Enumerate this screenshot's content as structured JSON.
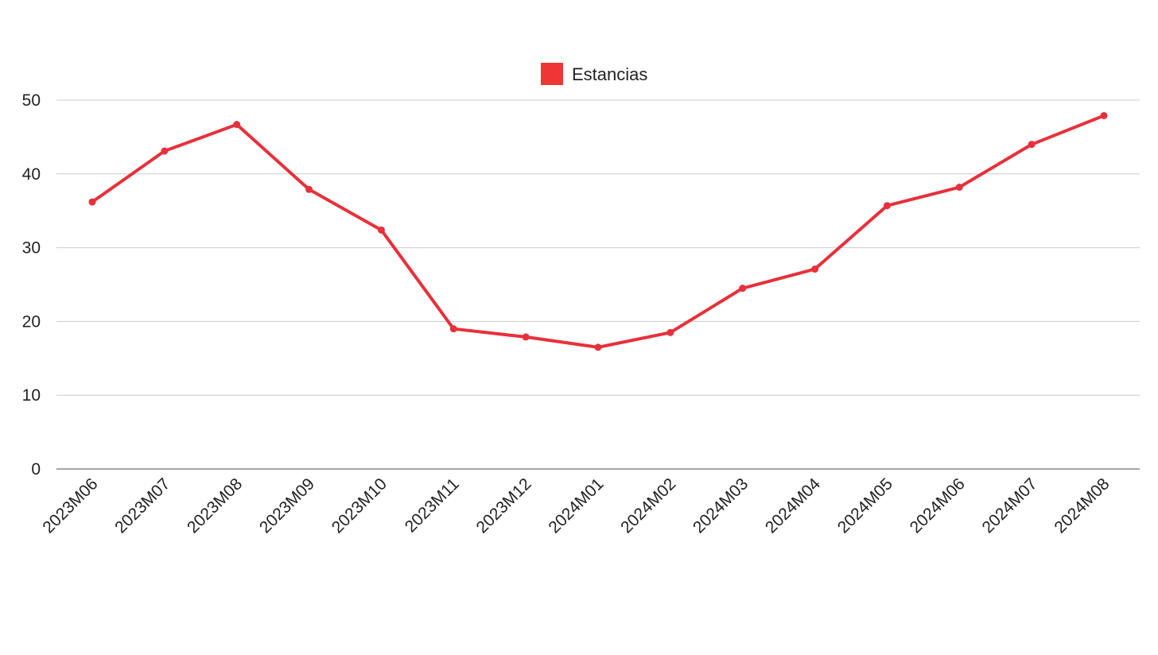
{
  "chart_data": {
    "type": "line",
    "title": "",
    "xlabel": "",
    "ylabel": "",
    "categories": [
      "2023M06",
      "2023M07",
      "2023M08",
      "2023M09",
      "2023M10",
      "2023M11",
      "2023M12",
      "2024M01",
      "2024M02",
      "2024M03",
      "2024M04",
      "2024M05",
      "2024M06",
      "2024M07",
      "2024M08"
    ],
    "series": [
      {
        "name": "Estancias",
        "color": "#e8303a",
        "values": [
          36.2,
          43.1,
          46.7,
          37.9,
          32.4,
          19.0,
          17.9,
          16.5,
          18.5,
          24.5,
          27.1,
          35.7,
          38.2,
          44.0,
          47.9
        ]
      }
    ],
    "ylim": [
      0,
      50
    ],
    "yticks": [
      0,
      10,
      20,
      30,
      40,
      50
    ],
    "grid": true,
    "legend": {
      "position": "top-center",
      "swatch_color": "#f03535"
    }
  }
}
